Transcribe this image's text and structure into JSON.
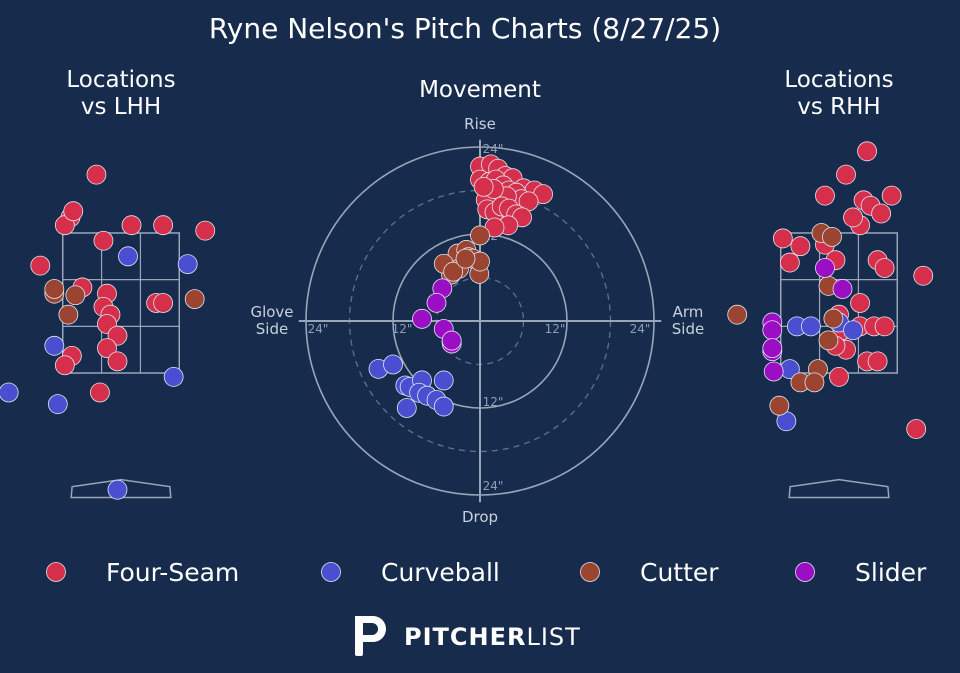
{
  "chart_data": {
    "type": "scatter",
    "title": "Ryne Nelson's Pitch Charts (8/27/25)",
    "colors": {
      "background": "#172b4d",
      "Four-Seam": "#d62f4b",
      "Curveball": "#4a4fd1",
      "Cutter": "#9a4431",
      "Slider": "#9a0ec4",
      "lines": "#9aa6b7"
    },
    "legend": {
      "position": "bottom",
      "entries": [
        "Four-Seam",
        "Curveball",
        "Cutter",
        "Slider"
      ]
    },
    "panels": {
      "lhh": {
        "title_line1": "Locations",
        "title_line2": "vs LHH",
        "points": [
          {
            "pitch": "Four-Seam",
            "x": -0.35,
            "y": 4.15
          },
          {
            "pitch": "Four-Seam",
            "x": -0.72,
            "y": 3.6
          },
          {
            "pitch": "Four-Seam",
            "x": -0.8,
            "y": 3.5
          },
          {
            "pitch": "Four-Seam",
            "x": -0.25,
            "y": 3.3
          },
          {
            "pitch": "Four-Seam",
            "x": 0.15,
            "y": 3.5
          },
          {
            "pitch": "Four-Seam",
            "x": 0.6,
            "y": 3.5
          },
          {
            "pitch": "Four-Seam",
            "x": 1.2,
            "y": 3.43
          },
          {
            "pitch": "Four-Seam",
            "x": -1.15,
            "y": 2.98
          },
          {
            "pitch": "Four-Seam",
            "x": -0.55,
            "y": 2.7
          },
          {
            "pitch": "Four-Seam",
            "x": -0.2,
            "y": 2.62
          },
          {
            "pitch": "Four-Seam",
            "x": -0.25,
            "y": 2.45
          },
          {
            "pitch": "Four-Seam",
            "x": -0.15,
            "y": 2.35
          },
          {
            "pitch": "Four-Seam",
            "x": -0.2,
            "y": 2.23
          },
          {
            "pitch": "Four-Seam",
            "x": 0.5,
            "y": 2.5
          },
          {
            "pitch": "Four-Seam",
            "x": 0.6,
            "y": 2.5
          },
          {
            "pitch": "Four-Seam",
            "x": -0.05,
            "y": 2.08
          },
          {
            "pitch": "Four-Seam",
            "x": -0.2,
            "y": 1.92
          },
          {
            "pitch": "Four-Seam",
            "x": -0.05,
            "y": 1.75
          },
          {
            "pitch": "Four-Seam",
            "x": -0.7,
            "y": 1.82
          },
          {
            "pitch": "Four-Seam",
            "x": -0.8,
            "y": 1.7
          },
          {
            "pitch": "Four-Seam",
            "x": -0.3,
            "y": 1.35
          },
          {
            "pitch": "Four-Seam",
            "x": -0.68,
            "y": 3.68
          },
          {
            "pitch": "Curveball",
            "x": 0.1,
            "y": 3.1
          },
          {
            "pitch": "Curveball",
            "x": 0.95,
            "y": 3.0
          },
          {
            "pitch": "Curveball",
            "x": -0.95,
            "y": 1.95
          },
          {
            "pitch": "Curveball",
            "x": 0.75,
            "y": 1.55
          },
          {
            "pitch": "Curveball",
            "x": -1.6,
            "y": 1.35
          },
          {
            "pitch": "Curveball",
            "x": -0.9,
            "y": 1.2
          },
          {
            "pitch": "Curveball",
            "x": -0.05,
            "y": 0.1
          },
          {
            "pitch": "Cutter",
            "x": -0.95,
            "y": 2.62
          },
          {
            "pitch": "Cutter",
            "x": -0.65,
            "y": 2.6
          },
          {
            "pitch": "Cutter",
            "x": -0.75,
            "y": 2.35
          },
          {
            "pitch": "Cutter",
            "x": -0.95,
            "y": 2.68
          },
          {
            "pitch": "Cutter",
            "x": 1.05,
            "y": 2.55
          }
        ]
      },
      "movement": {
        "title": "Movement",
        "top_label": "Rise",
        "bottom_label": "Drop",
        "left_label_1": "Glove",
        "left_label_2": "Side",
        "right_label_1": "Arm",
        "right_label_2": "Side",
        "ring_labels": [
          "12\"",
          "24\""
        ],
        "points": [
          {
            "pitch": "Four-Seam",
            "x": 0,
            "y": 21.3
          },
          {
            "pitch": "Four-Seam",
            "x": 1.5,
            "y": 21.6
          },
          {
            "pitch": "Four-Seam",
            "x": 2.5,
            "y": 21.0
          },
          {
            "pitch": "Four-Seam",
            "x": 3.5,
            "y": 20.0
          },
          {
            "pitch": "Four-Seam",
            "x": 4.5,
            "y": 19.7
          },
          {
            "pitch": "Four-Seam",
            "x": 6.0,
            "y": 18.3
          },
          {
            "pitch": "Four-Seam",
            "x": 7.5,
            "y": 18.0
          },
          {
            "pitch": "Four-Seam",
            "x": 8.7,
            "y": 17.5
          },
          {
            "pitch": "Four-Seam",
            "x": 0,
            "y": 19.5
          },
          {
            "pitch": "Four-Seam",
            "x": 1.3,
            "y": 19.2
          },
          {
            "pitch": "Four-Seam",
            "x": 2.2,
            "y": 19.5
          },
          {
            "pitch": "Four-Seam",
            "x": 3.2,
            "y": 18.7
          },
          {
            "pitch": "Four-Seam",
            "x": 4.0,
            "y": 18.0
          },
          {
            "pitch": "Four-Seam",
            "x": 5.0,
            "y": 17.7
          },
          {
            "pitch": "Four-Seam",
            "x": 5.7,
            "y": 16.8
          },
          {
            "pitch": "Four-Seam",
            "x": 6.7,
            "y": 16.5
          },
          {
            "pitch": "Four-Seam",
            "x": 1.5,
            "y": 17.6
          },
          {
            "pitch": "Four-Seam",
            "x": 2.5,
            "y": 16.3
          },
          {
            "pitch": "Four-Seam",
            "x": 3.7,
            "y": 17.2
          },
          {
            "pitch": "Four-Seam",
            "x": 0.8,
            "y": 16.7
          },
          {
            "pitch": "Four-Seam",
            "x": 1.0,
            "y": 15.4
          },
          {
            "pitch": "Four-Seam",
            "x": 2.0,
            "y": 15.0
          },
          {
            "pitch": "Four-Seam",
            "x": 3.0,
            "y": 15.8
          },
          {
            "pitch": "Four-Seam",
            "x": 4.0,
            "y": 15.5
          },
          {
            "pitch": "Four-Seam",
            "x": 5.0,
            "y": 14.7
          },
          {
            "pitch": "Four-Seam",
            "x": 5.8,
            "y": 14.3
          },
          {
            "pitch": "Four-Seam",
            "x": 3.9,
            "y": 13.2
          },
          {
            "pitch": "Four-Seam",
            "x": 2.0,
            "y": 12.9
          },
          {
            "pitch": "Four-Seam",
            "x": 1.9,
            "y": 18.2
          },
          {
            "pitch": "Four-Seam",
            "x": 0.5,
            "y": 18.5
          },
          {
            "pitch": "Cutter",
            "x": 0,
            "y": 11.8
          },
          {
            "pitch": "Cutter",
            "x": -3.1,
            "y": 9.3
          },
          {
            "pitch": "Cutter",
            "x": -1.9,
            "y": 9.8
          },
          {
            "pitch": "Cutter",
            "x": -1.6,
            "y": 8.8
          },
          {
            "pitch": "Cutter",
            "x": -2.9,
            "y": 7.2
          },
          {
            "pitch": "Cutter",
            "x": -4.0,
            "y": 6.4
          },
          {
            "pitch": "Cutter",
            "x": -5.0,
            "y": 7.9
          },
          {
            "pitch": "Cutter",
            "x": -3.7,
            "y": 6.8
          },
          {
            "pitch": "Cutter",
            "x": -1.0,
            "y": 8.6
          },
          {
            "pitch": "Cutter",
            "x": -0.1,
            "y": 6.5
          },
          {
            "pitch": "Cutter",
            "x": 0,
            "y": 8.2
          },
          {
            "pitch": "Cutter",
            "x": -2.0,
            "y": 8.6
          },
          {
            "pitch": "Slider",
            "x": -5.2,
            "y": 4.5
          },
          {
            "pitch": "Slider",
            "x": -6.0,
            "y": 2.5
          },
          {
            "pitch": "Slider",
            "x": -8.0,
            "y": 0.3
          },
          {
            "pitch": "Slider",
            "x": -5.0,
            "y": -1.1
          },
          {
            "pitch": "Slider",
            "x": -3.9,
            "y": -3.1
          },
          {
            "pitch": "Slider",
            "x": -3.9,
            "y": -2.7
          },
          {
            "pitch": "Curveball",
            "x": -14.0,
            "y": -6.6
          },
          {
            "pitch": "Curveball",
            "x": -12.0,
            "y": -6.0
          },
          {
            "pitch": "Curveball",
            "x": -10.3,
            "y": -8.9
          },
          {
            "pitch": "Curveball",
            "x": -9.7,
            "y": -9.1
          },
          {
            "pitch": "Curveball",
            "x": -8.0,
            "y": -8.2
          },
          {
            "pitch": "Curveball",
            "x": -8.4,
            "y": -9.9
          },
          {
            "pitch": "Curveball",
            "x": -7.3,
            "y": -10.3
          },
          {
            "pitch": "Curveball",
            "x": -6.0,
            "y": -10.9
          },
          {
            "pitch": "Curveball",
            "x": -5.0,
            "y": -11.8
          },
          {
            "pitch": "Curveball",
            "x": -10.1,
            "y": -12.0
          },
          {
            "pitch": "Curveball",
            "x": -5.0,
            "y": -8.2
          }
        ]
      },
      "rhh": {
        "title_line1": "Locations",
        "title_line2": "vs RHH",
        "points": [
          {
            "pitch": "Four-Seam",
            "x": 0.4,
            "y": 4.45
          },
          {
            "pitch": "Four-Seam",
            "x": 0.1,
            "y": 4.15
          },
          {
            "pitch": "Four-Seam",
            "x": -0.2,
            "y": 3.88
          },
          {
            "pitch": "Four-Seam",
            "x": 0.35,
            "y": 3.82
          },
          {
            "pitch": "Four-Seam",
            "x": 0.45,
            "y": 3.75
          },
          {
            "pitch": "Four-Seam",
            "x": 0.75,
            "y": 3.88
          },
          {
            "pitch": "Four-Seam",
            "x": 0.6,
            "y": 3.65
          },
          {
            "pitch": "Four-Seam",
            "x": 0.3,
            "y": 3.5
          },
          {
            "pitch": "Four-Seam",
            "x": 0.2,
            "y": 3.6
          },
          {
            "pitch": "Four-Seam",
            "x": -0.8,
            "y": 3.33
          },
          {
            "pitch": "Four-Seam",
            "x": -0.55,
            "y": 3.23
          },
          {
            "pitch": "Four-Seam",
            "x": -0.2,
            "y": 3.25
          },
          {
            "pitch": "Four-Seam",
            "x": -0.05,
            "y": 3.05
          },
          {
            "pitch": "Four-Seam",
            "x": 0.55,
            "y": 3.05
          },
          {
            "pitch": "Four-Seam",
            "x": 0.65,
            "y": 2.95
          },
          {
            "pitch": "Four-Seam",
            "x": -0.7,
            "y": 3.02
          },
          {
            "pitch": "Four-Seam",
            "x": 1.2,
            "y": 2.85
          },
          {
            "pitch": "Four-Seam",
            "x": 0.3,
            "y": 2.5
          },
          {
            "pitch": "Four-Seam",
            "x": 0.0,
            "y": 2.35
          },
          {
            "pitch": "Four-Seam",
            "x": 0.05,
            "y": 2.15
          },
          {
            "pitch": "Four-Seam",
            "x": 0.3,
            "y": 2.2
          },
          {
            "pitch": "Four-Seam",
            "x": 0.5,
            "y": 2.2
          },
          {
            "pitch": "Four-Seam",
            "x": 0.1,
            "y": 1.9
          },
          {
            "pitch": "Four-Seam",
            "x": -0.05,
            "y": 1.95
          },
          {
            "pitch": "Four-Seam",
            "x": 0.4,
            "y": 1.75
          },
          {
            "pitch": "Four-Seam",
            "x": 0.0,
            "y": 1.55
          },
          {
            "pitch": "Four-Seam",
            "x": 0.55,
            "y": 1.75
          },
          {
            "pitch": "Four-Seam",
            "x": 0.65,
            "y": 2.2
          },
          {
            "pitch": "Four-Seam",
            "x": 1.1,
            "y": 0.88
          },
          {
            "pitch": "Curveball",
            "x": -0.6,
            "y": 2.2
          },
          {
            "pitch": "Curveball",
            "x": -0.4,
            "y": 2.2
          },
          {
            "pitch": "Curveball",
            "x": 0.0,
            "y": 2.25
          },
          {
            "pitch": "Curveball",
            "x": 0.2,
            "y": 2.15
          },
          {
            "pitch": "Curveball",
            "x": -0.7,
            "y": 1.65
          },
          {
            "pitch": "Curveball",
            "x": -0.75,
            "y": 0.98
          },
          {
            "pitch": "Cutter",
            "x": -0.25,
            "y": 3.4
          },
          {
            "pitch": "Cutter",
            "x": -0.1,
            "y": 3.35
          },
          {
            "pitch": "Cutter",
            "x": -0.15,
            "y": 2.72
          },
          {
            "pitch": "Cutter",
            "x": -0.08,
            "y": 2.3
          },
          {
            "pitch": "Cutter",
            "x": -0.15,
            "y": 2.02
          },
          {
            "pitch": "Cutter",
            "x": -0.3,
            "y": 1.65
          },
          {
            "pitch": "Cutter",
            "x": -0.55,
            "y": 1.48
          },
          {
            "pitch": "Cutter",
            "x": -0.35,
            "y": 1.48
          },
          {
            "pitch": "Cutter",
            "x": -0.85,
            "y": 1.18
          },
          {
            "pitch": "Cutter",
            "x": -1.45,
            "y": 2.35
          },
          {
            "pitch": "Slider",
            "x": -0.2,
            "y": 2.95
          },
          {
            "pitch": "Slider",
            "x": 0.05,
            "y": 2.68
          },
          {
            "pitch": "Slider",
            "x": -0.95,
            "y": 2.25
          },
          {
            "pitch": "Slider",
            "x": -0.95,
            "y": 2.15
          },
          {
            "pitch": "Slider",
            "x": -0.95,
            "y": 1.88
          },
          {
            "pitch": "Slider",
            "x": -0.93,
            "y": 1.62
          },
          {
            "pitch": "Slider",
            "x": -0.95,
            "y": 1.92
          }
        ]
      }
    }
  },
  "branding": {
    "logo_bold": "PITCHER",
    "logo_light": "LIST"
  }
}
